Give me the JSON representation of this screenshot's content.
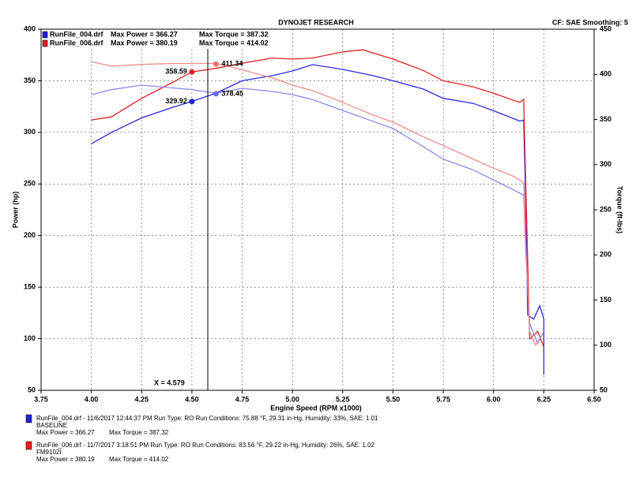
{
  "chart_data": {
    "type": "line",
    "title": "DYNOJET RESEARCH",
    "subtitle": "CF: SAE  Smoothing: 5",
    "x_label": "Engine Speed (RPM x1000)",
    "y_label": "Power (hp)",
    "y2_label": "Torque (ft-lbs)",
    "xlim": [
      3.75,
      6.5
    ],
    "xticks": [
      {
        "value": 3.75,
        "label": "3.75"
      },
      {
        "value": 4,
        "label": "4.00"
      },
      {
        "value": 4.25,
        "label": "4.25"
      },
      {
        "value": 4.5,
        "label": "4.50"
      },
      {
        "value": 4.75,
        "label": "4.75"
      },
      {
        "value": 5,
        "label": "5.00"
      },
      {
        "value": 5.25,
        "label": "5.25"
      },
      {
        "value": 5.5,
        "label": "5.50"
      },
      {
        "value": 5.75,
        "label": "5.75"
      },
      {
        "value": 6,
        "label": "6.00"
      },
      {
        "value": 6.25,
        "label": "6.25"
      },
      {
        "value": 6.5,
        "label": "6.50"
      }
    ],
    "ylim": [
      50,
      400
    ],
    "yticks": [
      50,
      100,
      150,
      200,
      250,
      300,
      350,
      400
    ],
    "y2lim": [
      50,
      450
    ],
    "y2ticks": [
      50,
      100,
      150,
      200,
      250,
      300,
      350,
      400,
      450
    ],
    "grid": true,
    "runs": [
      {
        "color": "#1f1fd8",
        "name": "RunFile_004.drf",
        "max_power": "Max Power = 366.27",
        "max_torque": "Max Torque = 387.32",
        "info": "RunFile_004.drf - 11/6/2017 12:44:37 PM  Run Type: RO  Run Conditions: 75.88 °F, 29.31 in-Hg,  Humidity: 33%, SAE: 1.01",
        "note": "BASELINE"
      },
      {
        "color": "#e01f1f",
        "name": "RunFile_006.drf",
        "max_power": "Max Power = 380.19",
        "max_torque": "Max Torque = 414.02",
        "info": "RunFile_006.drf - 11/7/2017 3:18:51 PM  Run Type: RO  Run Conditions: 83.56 °F, 29.22 in-Hg,  Humidity: 26%, SAE: 1.02",
        "note": "FM9102I"
      }
    ],
    "series": [
      {
        "color": "#2a2ae0",
        "axis": "y",
        "x": [
          4.0,
          4.1,
          4.25,
          4.4,
          4.5,
          4.62,
          4.75,
          4.9,
          5.0,
          5.1,
          5.25,
          5.4,
          5.5,
          5.65,
          5.75,
          5.9,
          6.0,
          6.13,
          6.15,
          6.16,
          6.17,
          6.2,
          6.23,
          6.25,
          6.25
        ],
        "values": [
          289,
          300,
          314,
          324,
          330,
          338,
          350,
          355,
          359.5,
          365.6,
          361,
          355,
          350,
          342,
          333,
          328,
          321,
          311,
          312,
          230,
          123,
          119,
          132,
          119,
          65
        ]
      },
      {
        "color": "#e02424",
        "axis": "y",
        "x": [
          4.0,
          4.1,
          4.25,
          4.4,
          4.5,
          4.62,
          4.75,
          4.9,
          5.0,
          5.1,
          5.25,
          5.35,
          5.5,
          5.65,
          5.75,
          5.9,
          6.0,
          6.13,
          6.15,
          6.16,
          6.18,
          6.22,
          6.25
        ],
        "values": [
          312,
          315,
          333,
          348,
          358.6,
          362,
          367,
          372,
          371,
          372,
          378,
          380,
          371,
          360,
          350,
          344,
          338,
          329,
          332,
          250,
          100,
          107,
          92
        ]
      },
      {
        "color": "#8a8af2",
        "axis": "y2",
        "x": [
          4.0,
          4.1,
          4.25,
          4.4,
          4.5,
          4.62,
          4.75,
          4.9,
          5.0,
          5.1,
          5.25,
          5.4,
          5.5,
          5.65,
          5.75,
          5.9,
          6.0,
          6.1,
          6.15,
          6.16,
          6.18,
          6.22,
          6.25
        ],
        "values": [
          377.5,
          383,
          388,
          385,
          383,
          379,
          384.5,
          381,
          377.5,
          372,
          360,
          348,
          340,
          320,
          306,
          294,
          283,
          272,
          266,
          203,
          124,
          102,
          115
        ]
      },
      {
        "color": "#f28a8a",
        "axis": "y2",
        "x": [
          4.0,
          4.1,
          4.25,
          4.4,
          4.5,
          4.62,
          4.75,
          4.9,
          5.0,
          5.1,
          5.25,
          5.4,
          5.5,
          5.65,
          5.75,
          5.9,
          6.0,
          6.1,
          6.15,
          6.16,
          6.18,
          6.21,
          6.23
        ],
        "values": [
          414,
          409,
          411,
          412,
          412,
          412,
          405,
          396,
          388,
          382,
          369,
          355,
          347,
          331,
          321,
          306,
          296,
          287,
          280,
          210,
          115,
          100,
          108
        ]
      }
    ],
    "annotations": [
      {
        "x": 4.5,
        "y": 358.59,
        "axis": "y",
        "color": "#e02424"
      },
      {
        "x": 4.5,
        "y": 329.92,
        "axis": "y",
        "color": "#1f1fd8"
      },
      {
        "x": 4.62,
        "y": 411.34,
        "axis": "y2",
        "color": "#f07070"
      },
      {
        "x": 4.62,
        "y": 378.45,
        "axis": "y2",
        "color": "#6a6af0"
      }
    ],
    "cursor": {
      "value": 4.579,
      "label": "X = 4.579"
    }
  }
}
